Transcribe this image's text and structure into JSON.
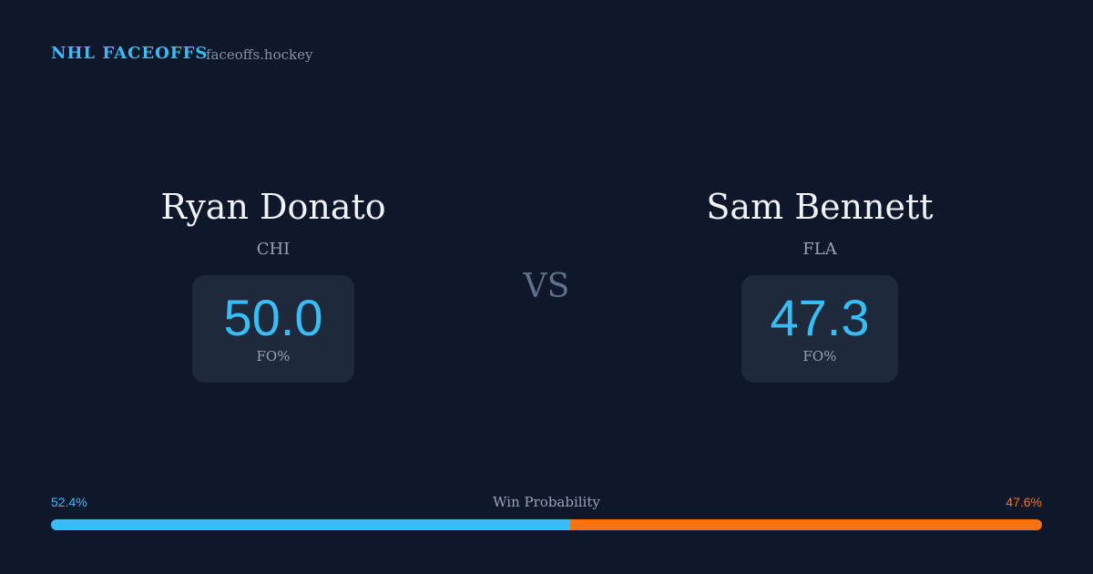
{
  "header": {
    "brand": "NHL FACEOFFS",
    "site": "faceoffs.hockey"
  },
  "players": [
    {
      "name": "Ryan Donato",
      "team": "CHI",
      "fo_pct": "50.0",
      "fo_label": "FO%"
    },
    {
      "name": "Sam Bennett",
      "team": "FLA",
      "fo_pct": "47.3",
      "fo_label": "FO%"
    }
  ],
  "vs": "VS",
  "win_probability": {
    "label": "Win Probability",
    "values": [
      52.4,
      47.6
    ],
    "value_labels": [
      "52.4%",
      "47.6%"
    ],
    "colors": [
      "#38bdf8",
      "#f97316"
    ]
  }
}
